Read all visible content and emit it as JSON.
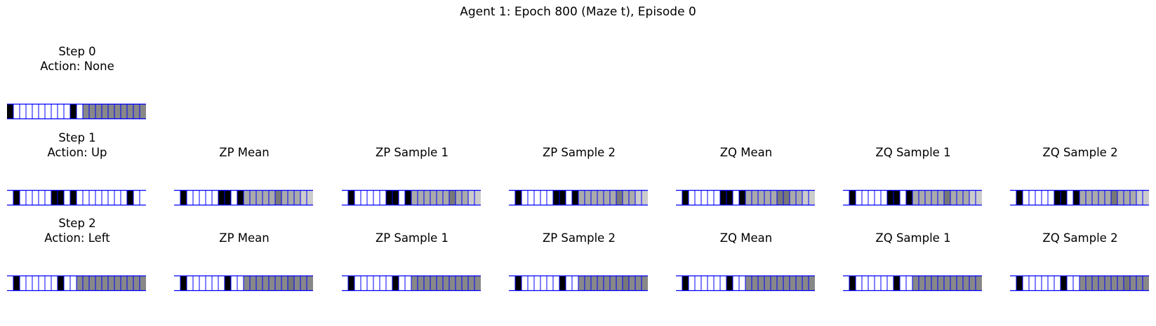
{
  "suptitle": "Agent 1: Epoch 800 (Maze t), Episode 0",
  "colors": {
    "cell_border": "#0000ff",
    "filled": "#000000",
    "empty": "#ffffff"
  },
  "chart_data": {
    "type": "heatmap",
    "title": "Agent 1: Epoch 800 (Maze t), Episode 0",
    "cells_per_strip": 22,
    "palette": {
      "0": "#ffffff",
      "1": "#000000",
      "2": "#888888",
      "3": "#cccccc",
      "4": "#777777",
      "5": "#aaaaaa"
    },
    "rows": [
      {
        "panels": [
          {
            "title_line1": "Step 0",
            "title_line2": "Action: None",
            "cells": [
              1,
              0,
              0,
              0,
              0,
              0,
              0,
              0,
              0,
              0,
              1,
              0,
              2,
              2,
              2,
              2,
              2,
              2,
              2,
              2,
              2,
              2
            ]
          }
        ]
      },
      {
        "panels": [
          {
            "title_line1": "Step 1",
            "title_line2": "Action: Up",
            "cells": [
              0,
              1,
              0,
              0,
              0,
              0,
              0,
              1,
              1,
              0,
              1,
              0,
              0,
              0,
              0,
              0,
              0,
              0,
              0,
              1,
              0,
              0
            ]
          },
          {
            "title_line1": "ZP Mean",
            "title_line2": "",
            "cells": [
              0,
              1,
              0,
              0,
              0,
              0,
              0,
              1,
              1,
              0,
              1,
              5,
              5,
              5,
              5,
              5,
              4,
              5,
              5,
              5,
              3,
              3
            ]
          },
          {
            "title_line1": "ZP Sample 1",
            "title_line2": "",
            "cells": [
              0,
              1,
              0,
              0,
              0,
              0,
              0,
              1,
              1,
              0,
              1,
              5,
              5,
              5,
              5,
              5,
              5,
              4,
              5,
              5,
              3,
              3
            ]
          },
          {
            "title_line1": "ZP Sample 2",
            "title_line2": "",
            "cells": [
              0,
              1,
              0,
              0,
              0,
              0,
              0,
              1,
              1,
              0,
              1,
              5,
              5,
              5,
              5,
              5,
              5,
              4,
              5,
              5,
              3,
              3
            ]
          },
          {
            "title_line1": "ZQ Mean",
            "title_line2": "",
            "cells": [
              0,
              1,
              0,
              0,
              0,
              0,
              0,
              1,
              1,
              0,
              1,
              5,
              5,
              5,
              5,
              5,
              4,
              4,
              5,
              5,
              3,
              3
            ]
          },
          {
            "title_line1": "ZQ Sample 1",
            "title_line2": "",
            "cells": [
              0,
              1,
              0,
              0,
              0,
              0,
              0,
              1,
              1,
              0,
              1,
              5,
              5,
              5,
              5,
              5,
              4,
              5,
              5,
              5,
              3,
              3
            ]
          },
          {
            "title_line1": "ZQ Sample 2",
            "title_line2": "",
            "cells": [
              0,
              1,
              0,
              0,
              0,
              0,
              0,
              1,
              1,
              0,
              1,
              5,
              5,
              5,
              5,
              5,
              4,
              5,
              5,
              5,
              3,
              3
            ]
          }
        ]
      },
      {
        "panels": [
          {
            "title_line1": "Step 2",
            "title_line2": "Action: Left",
            "cells": [
              0,
              1,
              0,
              0,
              0,
              0,
              0,
              0,
              1,
              0,
              0,
              2,
              2,
              2,
              2,
              2,
              2,
              2,
              2,
              2,
              2,
              2
            ]
          },
          {
            "title_line1": "ZP Mean",
            "title_line2": "",
            "cells": [
              0,
              1,
              0,
              0,
              0,
              0,
              0,
              0,
              1,
              0,
              0,
              2,
              2,
              2,
              2,
              2,
              2,
              2,
              4,
              2,
              2,
              2
            ]
          },
          {
            "title_line1": "ZP Sample 1",
            "title_line2": "",
            "cells": [
              0,
              1,
              0,
              0,
              0,
              0,
              0,
              0,
              1,
              0,
              0,
              2,
              2,
              2,
              2,
              2,
              2,
              2,
              2,
              2,
              2,
              2
            ]
          },
          {
            "title_line1": "ZP Sample 2",
            "title_line2": "",
            "cells": [
              0,
              1,
              0,
              0,
              0,
              0,
              0,
              0,
              1,
              0,
              0,
              2,
              2,
              2,
              2,
              2,
              2,
              2,
              4,
              2,
              2,
              2
            ]
          },
          {
            "title_line1": "ZQ Mean",
            "title_line2": "",
            "cells": [
              0,
              1,
              0,
              0,
              0,
              0,
              0,
              0,
              1,
              0,
              0,
              2,
              2,
              2,
              2,
              2,
              2,
              2,
              2,
              2,
              2,
              2
            ]
          },
          {
            "title_line1": "ZQ Sample 1",
            "title_line2": "",
            "cells": [
              0,
              1,
              0,
              0,
              0,
              0,
              0,
              0,
              1,
              0,
              0,
              2,
              2,
              2,
              2,
              2,
              2,
              2,
              2,
              2,
              2,
              2
            ]
          },
          {
            "title_line1": "ZQ Sample 2",
            "title_line2": "",
            "cells": [
              0,
              1,
              0,
              0,
              0,
              0,
              0,
              0,
              1,
              0,
              0,
              2,
              2,
              2,
              2,
              2,
              2,
              2,
              4,
              2,
              2,
              2
            ]
          }
        ]
      }
    ]
  }
}
